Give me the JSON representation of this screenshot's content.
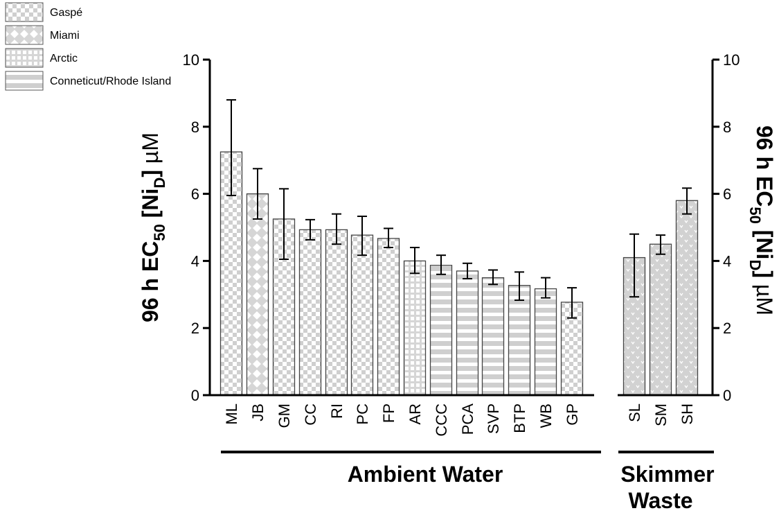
{
  "chart_data": {
    "type": "bar",
    "ylabel_left": {
      "main": "96 h EC",
      "sub1": "50",
      "mid": " [Ni",
      "sub2": "D",
      "end": "] ",
      "unit": "µM"
    },
    "ylabel_right": {
      "main": "96 h EC",
      "sub1": "50",
      "mid": " [Ni",
      "sub2": "D",
      "end": "] ",
      "unit": "µM"
    },
    "ylim": [
      0,
      10
    ],
    "yticks": [
      "0",
      "2",
      "4",
      "6",
      "8",
      "10"
    ],
    "legend": {
      "placement": "top-left",
      "entries": [
        {
          "name": "Gaspé",
          "pattern": "checker"
        },
        {
          "name": "Miami",
          "pattern": "diamond"
        },
        {
          "name": "Arctic",
          "pattern": "grid"
        },
        {
          "name": "Conneticut/Rhode Island",
          "pattern": "stripes"
        }
      ]
    },
    "groups": [
      {
        "label": "Ambient Water",
        "categories": [
          "ML",
          "JB",
          "GM",
          "CC",
          "RI",
          "PC",
          "FP",
          "AR",
          "CCC",
          "PCA",
          "SVP",
          "BTP",
          "WB",
          "GP"
        ]
      },
      {
        "label_line1": "Skimmer",
        "label_line2": "Waste",
        "categories": [
          "SL",
          "SM",
          "SH"
        ]
      }
    ],
    "bars": [
      {
        "category": "ML",
        "value": 7.25,
        "err_low": 5.95,
        "err_high": 8.8,
        "pattern": "checker"
      },
      {
        "category": "JB",
        "value": 6.0,
        "err_low": 5.25,
        "err_high": 6.75,
        "pattern": "diamond"
      },
      {
        "category": "GM",
        "value": 5.25,
        "err_low": 4.05,
        "err_high": 6.15,
        "pattern": "checker"
      },
      {
        "category": "CC",
        "value": 4.93,
        "err_low": 4.63,
        "err_high": 5.23,
        "pattern": "checker"
      },
      {
        "category": "RI",
        "value": 4.93,
        "err_low": 4.5,
        "err_high": 5.4,
        "pattern": "checker"
      },
      {
        "category": "PC",
        "value": 4.77,
        "err_low": 4.17,
        "err_high": 5.33,
        "pattern": "checker"
      },
      {
        "category": "FP",
        "value": 4.67,
        "err_low": 4.4,
        "err_high": 4.97,
        "pattern": "checker"
      },
      {
        "category": "AR",
        "value": 4.0,
        "err_low": 3.63,
        "err_high": 4.4,
        "pattern": "grid"
      },
      {
        "category": "CCC",
        "value": 3.87,
        "err_low": 3.6,
        "err_high": 4.17,
        "pattern": "stripes"
      },
      {
        "category": "PCA",
        "value": 3.7,
        "err_low": 3.47,
        "err_high": 3.93,
        "pattern": "stripes"
      },
      {
        "category": "SVP",
        "value": 3.5,
        "err_low": 3.3,
        "err_high": 3.73,
        "pattern": "stripes"
      },
      {
        "category": "BTP",
        "value": 3.27,
        "err_low": 2.83,
        "err_high": 3.67,
        "pattern": "stripes"
      },
      {
        "category": "WB",
        "value": 3.17,
        "err_low": 2.9,
        "err_high": 3.5,
        "pattern": "stripes"
      },
      {
        "category": "GP",
        "value": 2.77,
        "err_low": 2.3,
        "err_high": 3.2,
        "pattern": "checker"
      },
      {
        "category": "SL",
        "value": 4.1,
        "err_low": 2.93,
        "err_high": 4.8,
        "pattern": "skimmer"
      },
      {
        "category": "SM",
        "value": 4.5,
        "err_low": 4.2,
        "err_high": 4.77,
        "pattern": "skimmer"
      },
      {
        "category": "SH",
        "value": 5.8,
        "err_low": 5.4,
        "err_high": 6.17,
        "pattern": "skimmer"
      }
    ]
  }
}
